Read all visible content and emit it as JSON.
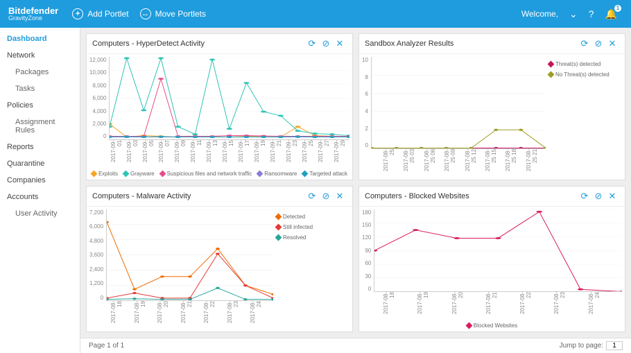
{
  "header": {
    "brand_main": "Bitdefender",
    "brand_sub": "GravityZone",
    "add_portlet": "Add Portlet",
    "move_portlets": "Move Portlets",
    "welcome": "Welcome,",
    "notif_count": "1"
  },
  "sidebar": {
    "items": [
      {
        "label": "Dashboard",
        "active": true,
        "sub": false
      },
      {
        "label": "Network",
        "active": false,
        "sub": false
      },
      {
        "label": "Packages",
        "active": false,
        "sub": true
      },
      {
        "label": "Tasks",
        "active": false,
        "sub": true
      },
      {
        "label": "Policies",
        "active": false,
        "sub": false
      },
      {
        "label": "Assignment Rules",
        "active": false,
        "sub": true
      },
      {
        "label": "Reports",
        "active": false,
        "sub": false
      },
      {
        "label": "Quarantine",
        "active": false,
        "sub": false
      },
      {
        "label": "Companies",
        "active": false,
        "sub": false
      },
      {
        "label": "Accounts",
        "active": false,
        "sub": false
      },
      {
        "label": "User Activity",
        "active": false,
        "sub": true
      }
    ]
  },
  "footer": {
    "page_label": "Page 1 of 1",
    "jump_label": "Jump to page:",
    "jump_value": "1"
  },
  "colors": {
    "grid": "#e8e8e8",
    "exploits": "#f5a623",
    "grayware": "#2ec4b6",
    "suspicious": "#e74c8c",
    "ransomware": "#8a7bd8",
    "targeted": "#1ea0c3",
    "threats": "#c2185b",
    "nothreats": "#9e9d24",
    "detected": "#ef6c00",
    "stillinfected": "#e53935",
    "resolved": "#26a69a",
    "blocked": "#d81b60"
  },
  "portlets": {
    "hyper": {
      "title": "Computers - HyperDetect Activity",
      "ymax": 12000,
      "yticks": [
        "12,000",
        "10,000",
        "8,000",
        "6,000",
        "4,000",
        "2,000",
        "0"
      ],
      "xlabels": [
        "2017-09-01",
        "2017-09-03",
        "2017-09-05",
        "2017-09-07",
        "2017-09-09",
        "2017-09-11",
        "2017-09-13",
        "2017-09-15",
        "2017-09-17",
        "2017-09-19",
        "2017-09-21",
        "2017-09-23",
        "2017-09-25",
        "2017-09-27",
        "2017-09-29"
      ],
      "series": [
        {
          "name": "Exploits",
          "color_key": "exploits",
          "values": [
            2200,
            300,
            500,
            400,
            300,
            400,
            350,
            300,
            400,
            350,
            300,
            1800,
            500,
            400,
            300
          ]
        },
        {
          "name": "Grayware",
          "color_key": "grayware",
          "values": [
            1800,
            11800,
            4200,
            11800,
            1800,
            700,
            11600,
            1500,
            8200,
            4000,
            3400,
            1200,
            800,
            700,
            500
          ]
        },
        {
          "name": "Suspicious files and network traffic",
          "color_key": "suspicious",
          "values": [
            400,
            400,
            400,
            8800,
            400,
            400,
            400,
            500,
            500,
            450,
            400,
            400,
            400,
            400,
            400
          ]
        },
        {
          "name": "Ransomware",
          "color_key": "ransomware",
          "values": [
            300,
            300,
            300,
            300,
            300,
            300,
            300,
            300,
            300,
            300,
            300,
            300,
            300,
            300,
            300
          ]
        },
        {
          "name": "Targeted attack",
          "color_key": "targeted",
          "values": [
            300,
            350,
            300,
            350,
            300,
            300,
            300,
            300,
            300,
            300,
            300,
            350,
            300,
            300,
            300
          ]
        }
      ],
      "legend_pos": "bottom"
    },
    "sandbox": {
      "title": "Sandbox Analyzer Results",
      "ymax": 10,
      "yticks": [
        "10",
        "8",
        "6",
        "4",
        "2",
        "0"
      ],
      "xlabels": [
        "2017-08-25",
        "2017-08-25 03",
        "2017-08-25 06",
        "2017-08-25 09",
        "2017-08-25 12",
        "2017-08-25 15",
        "2017-08-25 18",
        "2017-08-25 21"
      ],
      "series": [
        {
          "name": "Threat(s) detected",
          "color_key": "threats",
          "values": [
            0,
            0,
            0,
            0,
            0,
            0,
            0,
            0
          ]
        },
        {
          "name": "No Threat(s) detected",
          "color_key": "nothreats",
          "values": [
            0,
            0,
            0,
            0,
            0,
            2,
            2,
            0
          ]
        }
      ],
      "legend_pos": "right"
    },
    "malware": {
      "title": "Computers - Malware Activity",
      "ymax": 7200,
      "yticks": [
        "7,200",
        "6,000",
        "4,800",
        "3,600",
        "2,400",
        "1,200",
        "0"
      ],
      "xlabels": [
        "2017-08-18",
        "2017-08-19",
        "2017-08-20",
        "2017-08-21",
        "2017-08-22",
        "2017-08-23",
        "2017-08-24"
      ],
      "series": [
        {
          "name": "Detected",
          "color_key": "detected",
          "values": [
            6200,
            900,
            1900,
            1900,
            4100,
            1200,
            500
          ]
        },
        {
          "name": "Still infected",
          "color_key": "stillinfected",
          "values": [
            200,
            600,
            200,
            200,
            3700,
            1200,
            200
          ]
        },
        {
          "name": "Resolved",
          "color_key": "resolved",
          "values": [
            100,
            150,
            100,
            100,
            1000,
            100,
            100
          ]
        }
      ],
      "legend_pos": "right"
    },
    "blocked": {
      "title": "Computers - Blocked Websites",
      "ymax": 180,
      "yticks": [
        "180",
        "150",
        "120",
        "90",
        "60",
        "30",
        "0"
      ],
      "xlabels": [
        "2017-08-18",
        "2017-08-19",
        "2017-08-20",
        "2017-08-21",
        "2017-08-22",
        "2017-08-23",
        "2017-08-24"
      ],
      "series": [
        {
          "name": "Blocked Websites",
          "color_key": "blocked",
          "values": [
            90,
            135,
            117,
            117,
            175,
            5,
            0
          ]
        }
      ],
      "legend_pos": "bottom"
    }
  }
}
